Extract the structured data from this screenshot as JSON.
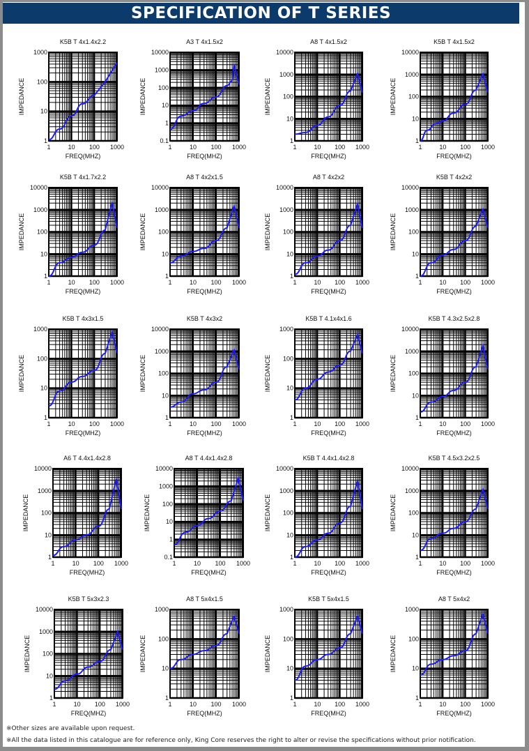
{
  "header": {
    "title": "SPECIFICATION OF T SERIES"
  },
  "notes": [
    "※Other sizes are available upon request.",
    "※All the data listed in this catalogue are for reference only, King Core reserves the right to alter or revise the specifications without prior notification."
  ],
  "colors": {
    "header_bg": "#0c3a6a",
    "curve": "#1a1aff",
    "grid": "#000000"
  },
  "chart_data": [
    {
      "type": "line",
      "title": "K5B T 4x1.4x2.2",
      "xlabel": "FREQ(MHZ)",
      "ylabel": "IMPEDANCE",
      "xscale": "log",
      "yscale": "log",
      "xlim": [
        1,
        1000
      ],
      "ylim": [
        1,
        1000
      ],
      "xticks": [
        "1",
        "10",
        "100",
        "1000"
      ],
      "yticks": [
        "1",
        "10",
        "100",
        "1000"
      ],
      "grid": true,
      "x": [
        1,
        3,
        10,
        30,
        100,
        300,
        1000
      ],
      "y": [
        1.1,
        2.5,
        7,
        18,
        35,
        100,
        450
      ]
    },
    {
      "type": "line",
      "title": "A3 T 4x1.5x2",
      "xlabel": "FREQ(MHZ)",
      "ylabel": "IMPEDANCE",
      "xscale": "log",
      "yscale": "log",
      "xlim": [
        1,
        1000
      ],
      "ylim": [
        0.1,
        10000
      ],
      "xticks": [
        "1",
        "10",
        "100",
        "1000"
      ],
      "yticks": [
        "0.1",
        "1",
        "10",
        "100",
        "1000",
        "10000"
      ],
      "grid": true,
      "x": [
        1,
        3,
        10,
        30,
        100,
        300,
        500,
        600,
        1000
      ],
      "y": [
        0.45,
        2.5,
        5,
        13,
        30,
        130,
        250,
        2000,
        150
      ]
    },
    {
      "type": "line",
      "title": "A8 T 4x1.5x2",
      "xlabel": "FREQ(MHZ)",
      "ylabel": "IMPEDANCE",
      "xscale": "log",
      "yscale": "log",
      "xlim": [
        1,
        1000
      ],
      "ylim": [
        1,
        10000
      ],
      "xticks": [
        "1",
        "10",
        "100",
        "1000"
      ],
      "yticks": [
        "1",
        "10",
        "100",
        "1000",
        "10000"
      ],
      "grid": true,
      "x": [
        1,
        3,
        10,
        30,
        100,
        300,
        600,
        1000
      ],
      "y": [
        2,
        2.4,
        5,
        12,
        40,
        180,
        1100,
        150
      ]
    },
    {
      "type": "line",
      "title": "K5B T 4x1.5x2",
      "xlabel": "FREQ(MHZ)",
      "ylabel": "IMPEDANCE",
      "xscale": "log",
      "yscale": "log",
      "xlim": [
        1,
        1000
      ],
      "ylim": [
        1,
        10000
      ],
      "xticks": [
        "1",
        "10",
        "100",
        "1000"
      ],
      "yticks": [
        "1",
        "10",
        "100",
        "1000",
        "10000"
      ],
      "grid": true,
      "x": [
        1,
        2,
        5,
        10,
        30,
        100,
        300,
        600,
        1000
      ],
      "y": [
        1,
        3,
        6,
        8,
        18,
        45,
        200,
        1100,
        150
      ]
    },
    {
      "type": "line",
      "title": "K5B T 4x1.7x2.2",
      "xlabel": "FREQ(MHZ)",
      "ylabel": "IMPEDANCE",
      "xscale": "log",
      "yscale": "log",
      "xlim": [
        1,
        1000
      ],
      "ylim": [
        1,
        10000
      ],
      "xticks": [
        "1",
        "10",
        "100",
        "1000"
      ],
      "yticks": [
        "1",
        "10",
        "100",
        "1000",
        "10000"
      ],
      "grid": true,
      "x": [
        1,
        3,
        10,
        30,
        100,
        300,
        600,
        1000
      ],
      "y": [
        1,
        4,
        7,
        12,
        25,
        120,
        2200,
        150
      ]
    },
    {
      "type": "line",
      "title": "A8 T 4x2x1.5",
      "xlabel": "FREQ(MHZ)",
      "ylabel": "IMPEDANCE",
      "xscale": "log",
      "yscale": "log",
      "xlim": [
        1,
        1000
      ],
      "ylim": [
        1,
        10000
      ],
      "xticks": [
        "1",
        "10",
        "100",
        "1000"
      ],
      "yticks": [
        "1",
        "10",
        "100",
        "1000",
        "10000"
      ],
      "grid": true,
      "x": [
        1,
        3,
        10,
        30,
        100,
        300,
        600,
        1000
      ],
      "y": [
        4,
        8,
        13,
        18,
        40,
        150,
        1500,
        150
      ]
    },
    {
      "type": "line",
      "title": "A8 T 4x2x2",
      "xlabel": "FREQ(MHZ)",
      "ylabel": "IMPEDANCE",
      "xscale": "log",
      "yscale": "log",
      "xlim": [
        1,
        1000
      ],
      "ylim": [
        1,
        10000
      ],
      "xticks": [
        "1",
        "10",
        "100",
        "1000"
      ],
      "yticks": [
        "1",
        "10",
        "100",
        "1000",
        "10000"
      ],
      "grid": true,
      "x": [
        1,
        3,
        10,
        30,
        100,
        300,
        600,
        1000
      ],
      "y": [
        1.2,
        4,
        8,
        15,
        40,
        200,
        1800,
        150
      ]
    },
    {
      "type": "line",
      "title": "K5B T 4x2x2",
      "xlabel": "FREQ(MHZ)",
      "ylabel": "IMPEDANCE",
      "xscale": "log",
      "yscale": "log",
      "xlim": [
        1,
        1000
      ],
      "ylim": [
        1,
        10000
      ],
      "xticks": [
        "1",
        "10",
        "100",
        "1000"
      ],
      "yticks": [
        "1",
        "10",
        "100",
        "1000",
        "10000"
      ],
      "grid": true,
      "x": [
        1,
        3,
        10,
        30,
        100,
        300,
        600,
        1000
      ],
      "y": [
        1,
        4,
        9,
        16,
        40,
        180,
        1100,
        150
      ]
    },
    {
      "type": "line",
      "title": "K5B T 4x3x1.5",
      "xlabel": "FREQ(MHZ)",
      "ylabel": "IMPEDANCE",
      "xscale": "log",
      "yscale": "log",
      "xlim": [
        1,
        1000
      ],
      "ylim": [
        1,
        1000
      ],
      "xticks": [
        "1",
        "10",
        "100",
        "1000"
      ],
      "yticks": [
        "1",
        "10",
        "100",
        "1000"
      ],
      "grid": true,
      "x": [
        1,
        3,
        10,
        30,
        100,
        300,
        600,
        1000
      ],
      "y": [
        2.5,
        8,
        16,
        25,
        40,
        150,
        800,
        150
      ]
    },
    {
      "type": "line",
      "title": "K5B T 4x3x2",
      "xlabel": "FREQ(MHZ)",
      "ylabel": "IMPEDANCE",
      "xscale": "log",
      "yscale": "log",
      "xlim": [
        1,
        1000
      ],
      "ylim": [
        1,
        10000
      ],
      "xticks": [
        "1",
        "10",
        "100",
        "1000"
      ],
      "yticks": [
        "1",
        "10",
        "100",
        "1000",
        "10000"
      ],
      "grid": true,
      "x": [
        1,
        3,
        10,
        30,
        100,
        300,
        600,
        1000
      ],
      "y": [
        3,
        5,
        12,
        18,
        40,
        200,
        1200,
        150
      ]
    },
    {
      "type": "line",
      "title": "K5B T 4.1x4x1.6",
      "xlabel": "FREQ(MHZ)",
      "ylabel": "IMPEDANCE",
      "xscale": "log",
      "yscale": "log",
      "xlim": [
        1,
        1000
      ],
      "ylim": [
        1,
        1000
      ],
      "xticks": [
        "1",
        "10",
        "100",
        "1000"
      ],
      "yticks": [
        "1",
        "10",
        "100",
        "1000"
      ],
      "grid": true,
      "x": [
        1,
        3,
        10,
        30,
        100,
        300,
        600,
        1000
      ],
      "y": [
        4,
        10,
        20,
        35,
        60,
        180,
        650,
        150
      ]
    },
    {
      "type": "line",
      "title": "K5B T 4.3x2.5x2.8",
      "xlabel": "FREQ(MHZ)",
      "ylabel": "IMPEDANCE",
      "xscale": "log",
      "yscale": "log",
      "xlim": [
        1,
        1000
      ],
      "ylim": [
        1,
        10000
      ],
      "xticks": [
        "1",
        "10",
        "100",
        "1000"
      ],
      "yticks": [
        "1",
        "10",
        "100",
        "1000",
        "10000"
      ],
      "grid": true,
      "x": [
        1,
        3,
        10,
        30,
        100,
        300,
        600,
        1000
      ],
      "y": [
        1.8,
        5,
        9,
        17,
        40,
        200,
        1800,
        150
      ]
    },
    {
      "type": "line",
      "title": "A6 T 4.4x1.4x2.8",
      "xlabel": "FREQ(MHZ)",
      "ylabel": "IMPEDANCE",
      "xscale": "log",
      "yscale": "log",
      "xlim": [
        1,
        1000
      ],
      "ylim": [
        1,
        10000
      ],
      "xticks": [
        "1",
        "10",
        "100",
        "1000"
      ],
      "yticks": [
        "1",
        "10",
        "100",
        "1000",
        "10000"
      ],
      "grid": true,
      "x": [
        1,
        3,
        10,
        30,
        100,
        300,
        600,
        1000
      ],
      "y": [
        1.2,
        3,
        6,
        10,
        25,
        150,
        3500,
        150
      ]
    },
    {
      "type": "line",
      "title": "A8 T 4.4x1.4x2.8",
      "xlabel": "FREQ(MHZ)",
      "ylabel": "IMPEDANCE",
      "xscale": "log",
      "yscale": "log",
      "xlim": [
        1,
        1000
      ],
      "ylim": [
        0.1,
        10000
      ],
      "xticks": [
        "1",
        "10",
        "100",
        "1000"
      ],
      "yticks": [
        "0.1",
        "1",
        "10",
        "100",
        "1000",
        "10000"
      ],
      "grid": true,
      "x": [
        1,
        3,
        10,
        30,
        100,
        300,
        600,
        1000
      ],
      "y": [
        0.5,
        2.5,
        6,
        15,
        40,
        150,
        3000,
        150
      ]
    },
    {
      "type": "line",
      "title": "K5B T 4.4x1.4x2.8",
      "xlabel": "FREQ(MHZ)",
      "ylabel": "IMPEDANCE",
      "xscale": "log",
      "yscale": "log",
      "xlim": [
        1,
        1000
      ],
      "ylim": [
        1,
        10000
      ],
      "xticks": [
        "1",
        "10",
        "100",
        "1000"
      ],
      "yticks": [
        "1",
        "10",
        "100",
        "1000",
        "10000"
      ],
      "grid": true,
      "x": [
        1,
        3,
        10,
        30,
        100,
        300,
        600,
        1000
      ],
      "y": [
        1,
        3,
        6,
        12,
        35,
        200,
        2800,
        150
      ]
    },
    {
      "type": "line",
      "title": "K5B T 4.5x3.2x2.5",
      "xlabel": "FREQ(MHZ)",
      "ylabel": "IMPEDANCE",
      "xscale": "log",
      "yscale": "log",
      "xlim": [
        1,
        1000
      ],
      "ylim": [
        1,
        10000
      ],
      "xticks": [
        "1",
        "10",
        "100",
        "1000"
      ],
      "yticks": [
        "1",
        "10",
        "100",
        "1000",
        "10000"
      ],
      "grid": true,
      "x": [
        1,
        3,
        10,
        30,
        100,
        300,
        600,
        1000
      ],
      "y": [
        2,
        7,
        12,
        20,
        40,
        150,
        1200,
        150
      ]
    },
    {
      "type": "line",
      "title": "K5B T 5x3x2.3",
      "xlabel": "FREQ(MHZ)",
      "ylabel": "IMPEDANCE",
      "xscale": "log",
      "yscale": "log",
      "xlim": [
        1,
        1000
      ],
      "ylim": [
        1,
        10000
      ],
      "xticks": [
        "1",
        "10",
        "100",
        "1000"
      ],
      "yticks": [
        "1",
        "10",
        "100",
        "1000",
        "10000"
      ],
      "grid": true,
      "x": [
        1,
        3,
        10,
        30,
        100,
        300,
        600,
        1000
      ],
      "y": [
        2.5,
        6,
        12,
        25,
        45,
        150,
        1000,
        150
      ]
    },
    {
      "type": "line",
      "title": "A8 T 5x4x1.5",
      "xlabel": "FREQ(MHZ)",
      "ylabel": "IMPEDANCE",
      "xscale": "log",
      "yscale": "log",
      "xlim": [
        1,
        1000
      ],
      "ylim": [
        1,
        1000
      ],
      "xticks": [
        "1",
        "10",
        "100",
        "1000"
      ],
      "yticks": [
        "1",
        "10",
        "100",
        "1000"
      ],
      "grid": true,
      "x": [
        1,
        3,
        10,
        30,
        100,
        300,
        600,
        1000
      ],
      "y": [
        10,
        20,
        30,
        40,
        60,
        150,
        600,
        150
      ]
    },
    {
      "type": "line",
      "title": "K5B T 5x4x1.5",
      "xlabel": "FREQ(MHZ)",
      "ylabel": "IMPEDANCE",
      "xscale": "log",
      "yscale": "log",
      "xlim": [
        1,
        1000
      ],
      "ylim": [
        1,
        1000
      ],
      "xticks": [
        "1",
        "10",
        "100",
        "1000"
      ],
      "yticks": [
        "1",
        "10",
        "100",
        "1000"
      ],
      "grid": true,
      "x": [
        1,
        3,
        10,
        30,
        100,
        300,
        600,
        1000
      ],
      "y": [
        4,
        12,
        20,
        30,
        50,
        150,
        600,
        150
      ]
    },
    {
      "type": "line",
      "title": "A8 T 5x4x2",
      "xlabel": "FREQ(MHZ)",
      "ylabel": "IMPEDANCE",
      "xscale": "log",
      "yscale": "log",
      "xlim": [
        1,
        1000
      ],
      "ylim": [
        1,
        1000
      ],
      "xticks": [
        "1",
        "10",
        "100",
        "1000"
      ],
      "yticks": [
        "1",
        "10",
        "100",
        "1000"
      ],
      "grid": true,
      "x": [
        1,
        3,
        10,
        30,
        100,
        300,
        600,
        1000
      ],
      "y": [
        6,
        14,
        20,
        27,
        40,
        150,
        700,
        150
      ]
    }
  ]
}
